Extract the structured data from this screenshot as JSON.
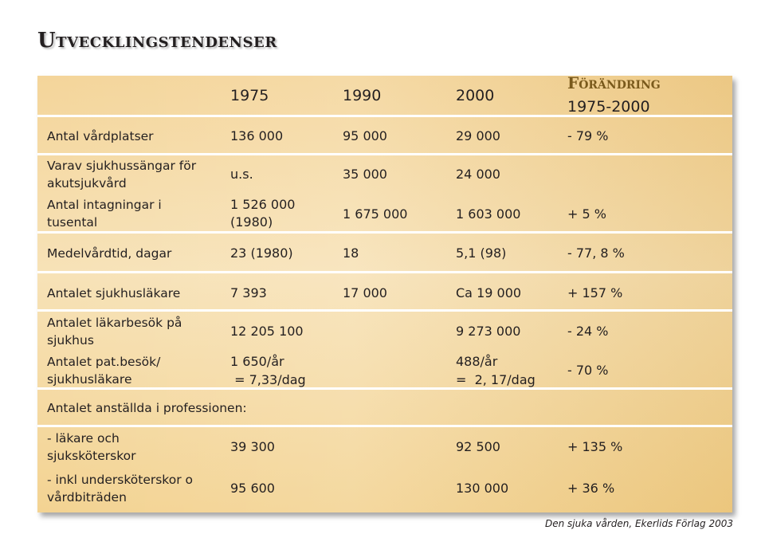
{
  "title": "Utvecklingstendenser",
  "header": {
    "years": [
      "1975",
      "1990",
      "2000"
    ],
    "change_title": "Förändring",
    "change_range": "1975-2000"
  },
  "rows": {
    "vardplatser": {
      "label": "Antal vårdplatser",
      "v1975": "136 000",
      "v1990": "95 000",
      "v2000": "29 000",
      "change": "- 79 %"
    },
    "akut": {
      "label_1": "Varav sjukhussängar för",
      "label_2": "akutsjukvård",
      "v1975": "u.s.",
      "v1990": "35 000",
      "v2000": "24 000"
    },
    "intagningar": {
      "label_1": "Antal intagningar i",
      "label_2": "tusental",
      "v1975_1": "1 526 000",
      "v1975_2": "(1980)",
      "v1990": "1 675 000",
      "v2000": "1 603 000",
      "change": "+ 5 %"
    },
    "medelvardtid": {
      "label": "Medelvårdtid, dagar",
      "v1975": "23  (1980)",
      "v1990": "18",
      "v2000": "5,1 (98)",
      "change": "- 77, 8 %"
    },
    "lakare": {
      "label": "Antalet sjukhusläkare",
      "v1975": "7 393",
      "v1990": "17 000",
      "v2000": "Ca 19 000",
      "change": "+ 157 %"
    },
    "lakarbesok": {
      "label_1": "Antalet läkarbesök på",
      "label_2": "sjukhus",
      "v1975": "12 205 100",
      "v2000": "9 273 000",
      "change": "- 24 %"
    },
    "patbesok": {
      "label_1": "Antalet pat.besök/",
      "label_2": "sjukhusläkare",
      "v1975_1": "1 650/år",
      "v1975_2": " = 7,33/dag",
      "v2000_1": "488/år",
      "v2000_2": "=  2, 17/dag",
      "change": "- 70 %"
    },
    "anstallda": {
      "label": "Antalet anställda i professionen:"
    },
    "sjukskoterskor": {
      "label_1": "- läkare och",
      "label_2": "sjuksköterskor",
      "v1975": "39 300",
      "v2000": "92 500",
      "change": "+ 135 %"
    },
    "underskoterskor": {
      "label_1": "- inkl undersköterskor o",
      "label_2": "vårdbiträden",
      "v1975": "95 600",
      "v2000": "130 000",
      "change": "+ 36 %"
    }
  },
  "credit": "Den sjuka vården, Ekerlids Förlag 2003"
}
